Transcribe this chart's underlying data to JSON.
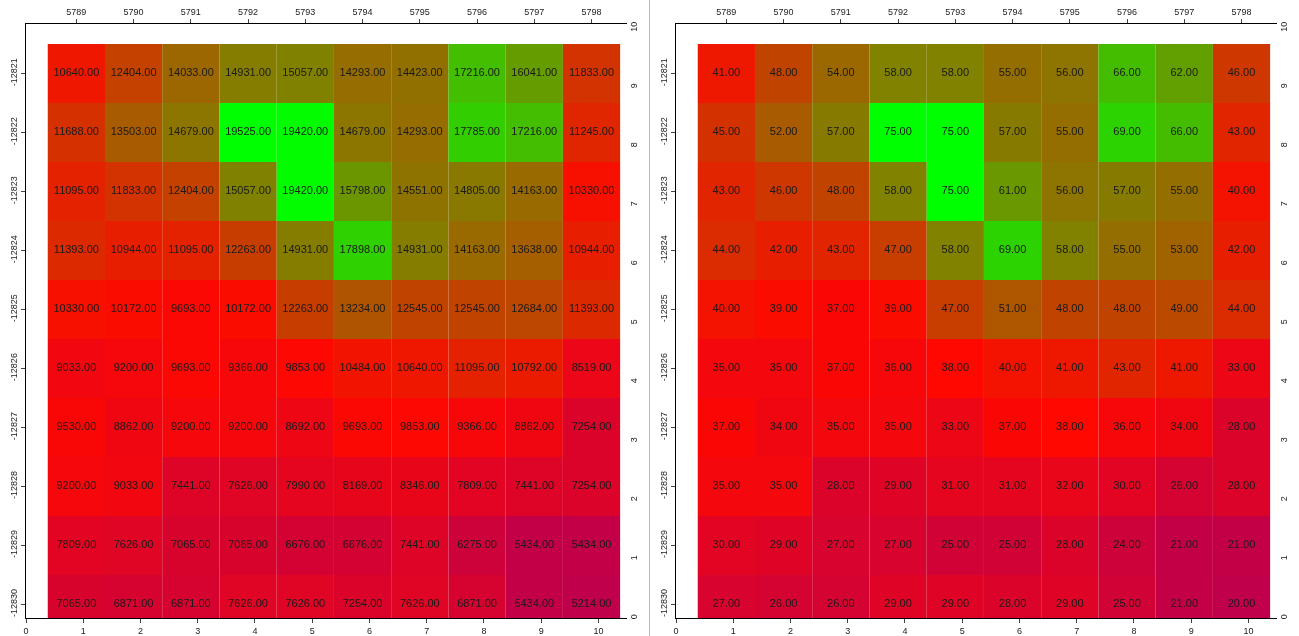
{
  "chart_data": [
    {
      "type": "heatmap",
      "categories": [
        "5789",
        "5790",
        "5791",
        "5792",
        "5793",
        "5794",
        "5795",
        "5796",
        "5797",
        "5798"
      ],
      "y_categories": [
        "-12821",
        "-12822",
        "-12823",
        "-12824",
        "-12825",
        "-12826",
        "-12827",
        "-12828",
        "-12829",
        "-12830"
      ],
      "colors": [
        "#c0004a",
        "#ff0800",
        "#8a7800",
        "#00ff00"
      ],
      "cells": [
        [
          10640,
          12404,
          14033,
          14931,
          15057,
          14293,
          14423,
          17216,
          16041,
          11833
        ],
        [
          11688,
          13503,
          14679,
          19525,
          19420,
          14679,
          14293,
          17785,
          17216,
          11245
        ],
        [
          11095,
          11833,
          12404,
          15057,
          19420,
          15798,
          14551,
          14805,
          14163,
          10330
        ],
        [
          11393,
          10944,
          11095,
          12263,
          14931,
          17898,
          14931,
          14163,
          13638,
          10944
        ],
        [
          10330,
          10172,
          9693,
          10172,
          12263,
          13234,
          12545,
          12545,
          12684,
          11393
        ],
        [
          9033,
          9200,
          9693,
          9366,
          9853,
          10484,
          10640,
          11095,
          10792,
          8519
        ],
        [
          9530,
          8862,
          9200,
          9200,
          8692,
          9693,
          9853,
          9366,
          8862,
          7254
        ],
        [
          9200,
          9033,
          7441,
          7626,
          7990,
          8169,
          8346,
          7809,
          7441,
          7254
        ],
        [
          7809,
          7626,
          7065,
          7065,
          6676,
          6676,
          7441,
          6275,
          5434,
          5434
        ],
        [
          7065,
          6871,
          6871,
          7626,
          7626,
          7254,
          7626,
          6871,
          5434,
          5214
        ]
      ],
      "cell_labels": [
        [
          "10640.00",
          "12404.00",
          "14033.00",
          "14931.00",
          "15057.00",
          "14293.00",
          "14423.00",
          "17216.00",
          "16041.00",
          "11833.00"
        ],
        [
          "11688.00",
          "13503.00",
          "14679.00",
          "19525.00",
          "19420.00",
          "14679.00",
          "14293.00",
          "17785.00",
          "17216.00",
          "11245.00"
        ],
        [
          "11095.00",
          "11833.00",
          "12404.00",
          "15057.00",
          "19420.00",
          "15798.00",
          "14551.00",
          "14805.00",
          "14163.00",
          "10330.00"
        ],
        [
          "11393.00",
          "10944.00",
          "11095.00",
          "12263.00",
          "14931.00",
          "17898.00",
          "14931.00",
          "14163.00",
          "13638.00",
          "10944.00"
        ],
        [
          "10330.00",
          "10172.00",
          "9693.00",
          "10172.00",
          "12263.00",
          "13234.00",
          "12545.00",
          "12545.00",
          "12684.00",
          "11393.00"
        ],
        [
          "9033.00",
          "9200.00",
          "9693.00",
          "9366.00",
          "9853.00",
          "10484.00",
          "10640.00",
          "11095.00",
          "10792.00",
          "8519.00"
        ],
        [
          "9530.00",
          "8862.00",
          "9200.00",
          "9200.00",
          "8692.00",
          "9693.00",
          "9853.00",
          "9366.00",
          "8862.00",
          "7254.00"
        ],
        [
          "9200.00",
          "9033.00",
          "7441.00",
          "7626.00",
          "7990.00",
          "8169.00",
          "8346.00",
          "7809.00",
          "7441.00",
          "7254.00"
        ],
        [
          "7809.00",
          "7626.00",
          "7065.00",
          "7065.00",
          "6676.00",
          "6676.00",
          "7441.00",
          "6275.00",
          "5434.00",
          "5434.00"
        ],
        [
          "7065.00",
          "6871.00",
          "6871.00",
          "7626.00",
          "7626.00",
          "7254.00",
          "7626.00",
          "6871.00",
          "5434.00",
          "5214.00"
        ]
      ],
      "x2lim": [
        0,
        10.5
      ],
      "x2ticks": [
        0,
        1,
        2,
        3,
        4,
        5,
        6,
        7,
        8,
        9,
        10
      ],
      "y2lim": [
        0,
        10.07
      ],
      "y2ticks": [
        0,
        1,
        2,
        3,
        4,
        5,
        6,
        7,
        8,
        9,
        10
      ]
    },
    {
      "type": "heatmap",
      "categories": [
        "5789",
        "5790",
        "5791",
        "5792",
        "5793",
        "5794",
        "5795",
        "5796",
        "5797",
        "5798"
      ],
      "y_categories": [
        "-12821",
        "-12822",
        "-12823",
        "-12824",
        "-12825",
        "-12826",
        "-12827",
        "-12828",
        "-12829",
        "-12830"
      ],
      "colors": [
        "#c0004a",
        "#ff0800",
        "#8a7800",
        "#00ff00"
      ],
      "cells": [
        [
          41,
          48,
          54,
          58,
          58,
          55,
          56,
          66,
          62,
          46
        ],
        [
          45,
          52,
          57,
          75,
          75,
          57,
          55,
          69,
          66,
          43
        ],
        [
          43,
          46,
          48,
          58,
          75,
          61,
          56,
          57,
          55,
          40
        ],
        [
          44,
          42,
          43,
          47,
          58,
          69,
          58,
          55,
          53,
          42
        ],
        [
          40,
          39,
          37,
          39,
          47,
          51,
          48,
          48,
          49,
          44
        ],
        [
          35,
          35,
          37,
          36,
          38,
          40,
          41,
          43,
          41,
          33
        ],
        [
          37,
          34,
          35,
          35,
          33,
          37,
          38,
          36,
          34,
          28
        ],
        [
          35,
          35,
          28,
          29,
          31,
          31,
          32,
          30,
          26,
          28
        ],
        [
          30,
          29,
          27,
          27,
          25,
          25,
          28,
          24,
          21,
          21
        ],
        [
          27,
          26,
          26,
          29,
          29,
          28,
          29,
          25,
          21,
          20
        ]
      ],
      "cell_labels": [
        [
          "41.00",
          "48.00",
          "54.00",
          "58.00",
          "58.00",
          "55.00",
          "56.00",
          "66.00",
          "62.00",
          "46.00"
        ],
        [
          "45.00",
          "52.00",
          "57.00",
          "75.00",
          "75.00",
          "57.00",
          "55.00",
          "69.00",
          "66.00",
          "43.00"
        ],
        [
          "43.00",
          "46.00",
          "48.00",
          "58.00",
          "75.00",
          "61.00",
          "56.00",
          "57.00",
          "55.00",
          "40.00"
        ],
        [
          "44.00",
          "42.00",
          "43.00",
          "47.00",
          "58.00",
          "69.00",
          "58.00",
          "55.00",
          "53.00",
          "42.00"
        ],
        [
          "40.00",
          "39.00",
          "37.00",
          "39.00",
          "47.00",
          "51.00",
          "48.00",
          "48.00",
          "49.00",
          "44.00"
        ],
        [
          "35.00",
          "35.00",
          "37.00",
          "36.00",
          "38.00",
          "40.00",
          "41.00",
          "43.00",
          "41.00",
          "33.00"
        ],
        [
          "37.00",
          "34.00",
          "35.00",
          "35.00",
          "33.00",
          "37.00",
          "38.00",
          "36.00",
          "34.00",
          "28.00"
        ],
        [
          "35.00",
          "35.00",
          "28.00",
          "29.00",
          "31.00",
          "31.00",
          "32.00",
          "30.00",
          "26.00",
          "28.00"
        ],
        [
          "30.00",
          "29.00",
          "27.00",
          "27.00",
          "25.00",
          "25.00",
          "28.00",
          "24.00",
          "21.00",
          "21.00"
        ],
        [
          "27.00",
          "26.00",
          "26.00",
          "29.00",
          "29.00",
          "28.00",
          "29.00",
          "25.00",
          "21.00",
          "20.00"
        ]
      ],
      "x2lim": [
        0,
        10.5
      ],
      "x2ticks": [
        0,
        1,
        2,
        3,
        4,
        5,
        6,
        7,
        8,
        9,
        10
      ],
      "y2lim": [
        0,
        10.07
      ],
      "y2ticks": [
        0,
        1,
        2,
        3,
        4,
        5,
        6,
        7,
        8,
        9,
        10
      ]
    }
  ]
}
